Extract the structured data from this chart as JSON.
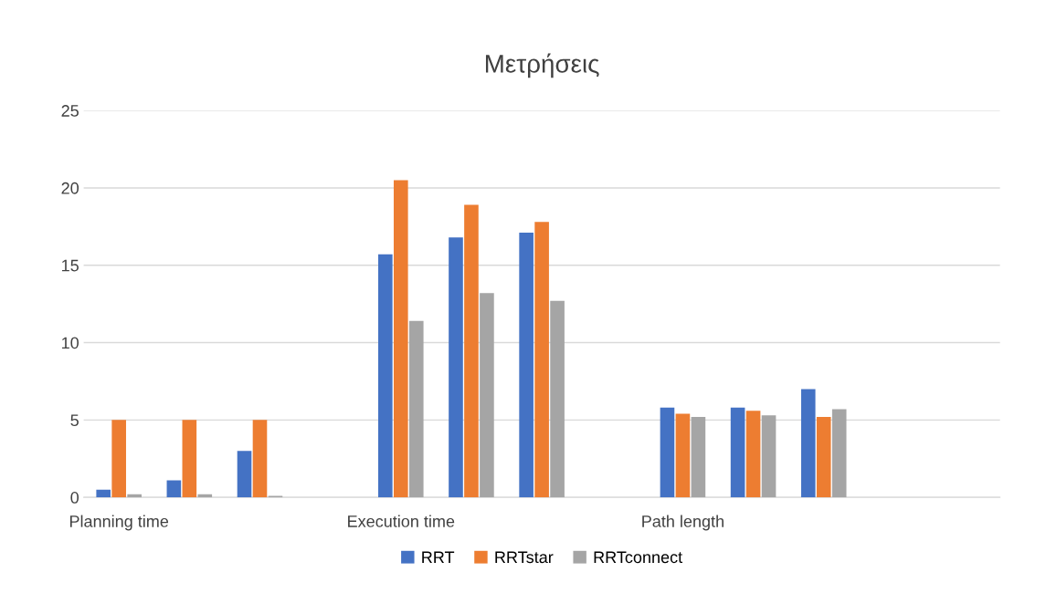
{
  "chart_data": {
    "type": "bar",
    "title": "Μετρήσεις",
    "categories": [
      "Planning time",
      null,
      null,
      null,
      "Execution time",
      null,
      null,
      null,
      "Path length",
      null,
      null,
      null,
      null
    ],
    "series": [
      {
        "name": "RRT",
        "color": "#4472c4",
        "values": [
          0.5,
          1.1,
          3.0,
          null,
          15.7,
          16.8,
          17.1,
          null,
          5.8,
          5.8,
          7.0,
          null,
          null
        ]
      },
      {
        "name": "RRTstar",
        "color": "#ed7d31",
        "values": [
          5.0,
          5.0,
          5.0,
          null,
          20.5,
          18.9,
          17.8,
          null,
          5.4,
          5.6,
          5.2,
          null,
          null
        ]
      },
      {
        "name": "RRTconnect",
        "color": "#a5a5a5",
        "values": [
          0.2,
          0.2,
          0.1,
          null,
          11.4,
          13.2,
          12.7,
          null,
          5.2,
          5.3,
          5.7,
          null,
          null
        ]
      }
    ],
    "ylim": [
      0,
      25
    ],
    "yticks": [
      0,
      5,
      10,
      15,
      20,
      25
    ],
    "grid": "y",
    "legend": "bottom"
  }
}
